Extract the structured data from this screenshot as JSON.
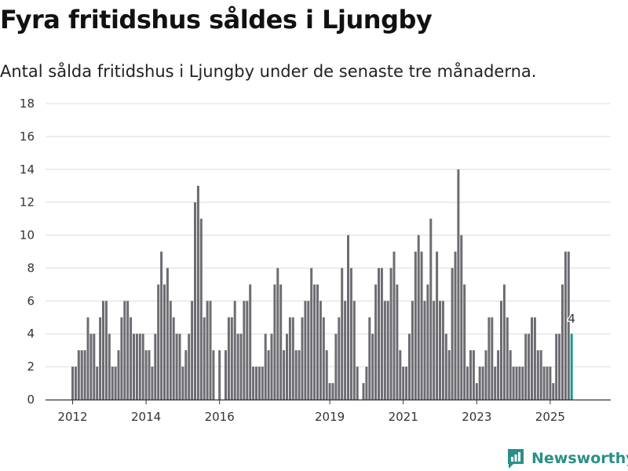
{
  "header": {
    "title": "Fyra fritidshus såldes i Ljungby",
    "subtitle": "Antal sålda fritidshus i Ljungby under de senaste tre månaderna."
  },
  "brand": {
    "name": "Newsworthy",
    "icon": "bar-chart-speech-bubble-icon"
  },
  "colors": {
    "bar": "#6d6c72",
    "highlight": "#1a9a91",
    "grid": "#dcdcdc",
    "axis": "#333333"
  },
  "chart_data": {
    "type": "bar",
    "title": "Fyra fritidshus såldes i Ljungby",
    "subtitle": "Antal sålda fritidshus i Ljungby under de senaste tre månaderna.",
    "xlabel": "",
    "ylabel": "",
    "ylim": [
      0,
      18
    ],
    "yticks": [
      0,
      2,
      4,
      6,
      8,
      10,
      12,
      14,
      16,
      18
    ],
    "grid": true,
    "xticks": [
      {
        "label": "2012",
        "index": 0
      },
      {
        "label": "2014",
        "index": 24
      },
      {
        "label": "2016",
        "index": 48
      },
      {
        "label": "2019",
        "index": 84
      },
      {
        "label": "2021",
        "index": 108
      },
      {
        "label": "2023",
        "index": 132
      },
      {
        "label": "2025",
        "index": 156
      }
    ],
    "x_start": "2012-01",
    "values": [
      2,
      2,
      3,
      3,
      3,
      5,
      4,
      4,
      2,
      5,
      6,
      6,
      4,
      2,
      2,
      3,
      5,
      6,
      6,
      5,
      4,
      4,
      4,
      4,
      3,
      3,
      2,
      4,
      7,
      9,
      7,
      8,
      6,
      5,
      4,
      4,
      2,
      3,
      4,
      6,
      12,
      13,
      11,
      5,
      6,
      6,
      3,
      0,
      3,
      0,
      3,
      5,
      5,
      6,
      4,
      4,
      6,
      6,
      7,
      2,
      2,
      2,
      2,
      4,
      3,
      4,
      7,
      8,
      7,
      3,
      4,
      5,
      5,
      3,
      3,
      5,
      6,
      6,
      8,
      7,
      7,
      6,
      5,
      3,
      1,
      1,
      4,
      5,
      8,
      6,
      10,
      8,
      6,
      2,
      0,
      1,
      2,
      5,
      4,
      7,
      8,
      8,
      6,
      6,
      8,
      9,
      7,
      3,
      2,
      2,
      4,
      6,
      9,
      10,
      9,
      6,
      7,
      11,
      6,
      9,
      6,
      6,
      4,
      3,
      8,
      9,
      14,
      10,
      7,
      2,
      3,
      3,
      1,
      2,
      2,
      3,
      5,
      5,
      2,
      3,
      6,
      7,
      5,
      3,
      2,
      2,
      2,
      2,
      4,
      4,
      5,
      5,
      3,
      3,
      2,
      2,
      2,
      1,
      4,
      4,
      7,
      9,
      9,
      4
    ],
    "highlight_last": true,
    "annotation": {
      "text": "4",
      "target": "last"
    }
  }
}
